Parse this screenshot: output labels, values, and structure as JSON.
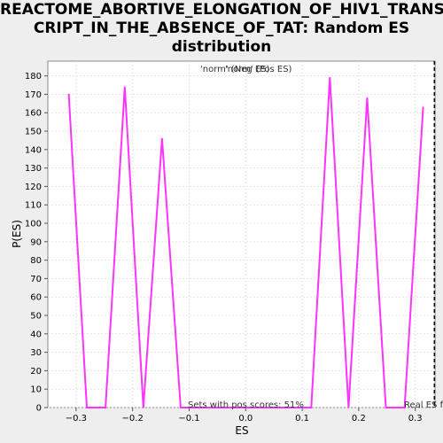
{
  "chart_data": {
    "type": "line",
    "title_lines": [
      "REACTOME_ABORTIVE_ELONGATION_OF_HIV1_TRANS",
      "CRIPT_IN_THE_ABSENCE_OF_TAT: Random ES",
      "distribution"
    ],
    "xlabel": "ES",
    "ylabel": "P(ES)",
    "xlim": [
      -0.35,
      0.335
    ],
    "ylim": [
      0,
      188
    ],
    "xticks": [
      -0.3,
      -0.2,
      -0.1,
      0.0,
      0.1,
      0.2,
      0.3
    ],
    "xtick_labels": [
      "−0.3",
      "−0.2",
      "−0.1",
      "0.0",
      "0.1",
      "0.2",
      "0.3"
    ],
    "yticks": [
      0,
      10,
      20,
      30,
      40,
      50,
      60,
      70,
      80,
      90,
      100,
      110,
      120,
      130,
      140,
      150,
      160,
      170,
      180
    ],
    "grid": true,
    "legend": {
      "placement": "top-center",
      "entries": [
        {
          "label": "'norm' (Neg ES)",
          "color": "#5533cc"
        },
        {
          "label": "'norm' (Pos ES)",
          "color": "#dd2222"
        }
      ]
    },
    "series": [
      {
        "color": "#ff33ff",
        "x": [
          -0.313,
          -0.281,
          -0.248,
          -0.214,
          -0.181,
          -0.148,
          -0.115,
          -0.082,
          -0.049,
          -0.016,
          0.017,
          0.05,
          0.083,
          0.116,
          0.149,
          0.182,
          0.215,
          0.248,
          0.281,
          0.314
        ],
        "y": [
          170,
          0,
          0,
          174,
          0,
          146,
          0,
          0,
          0,
          0,
          0,
          0,
          0,
          0,
          179,
          0,
          168,
          0,
          0,
          163
        ]
      }
    ],
    "real_es_line": {
      "x": 0.334,
      "label": "Real ES f"
    },
    "annotation": "Sets with pos scores: 51%"
  }
}
